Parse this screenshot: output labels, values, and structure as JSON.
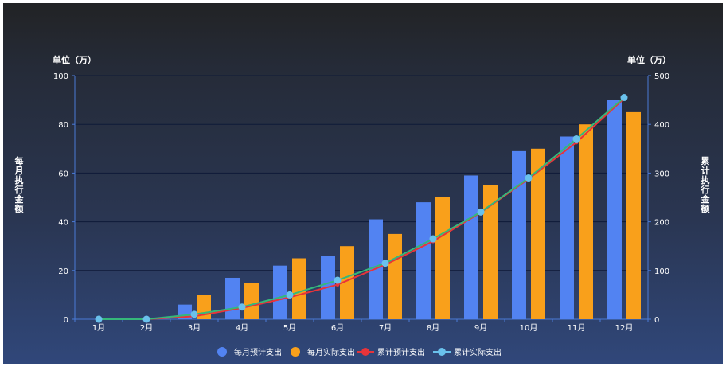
{
  "chart_data": {
    "type": "bar",
    "categories": [
      "1月",
      "2月",
      "3月",
      "4月",
      "5月",
      "6月",
      "7月",
      "8月",
      "9月",
      "10月",
      "11月",
      "12月"
    ],
    "y_left": {
      "unit_label": "单位（万）",
      "axis_name": "每月执行金额",
      "ylim": [
        0,
        100
      ],
      "ticks": [
        "0",
        "20",
        "40",
        "60",
        "80",
        "100"
      ]
    },
    "y_right": {
      "unit_label": "单位（万）",
      "axis_name": "累计执行金额",
      "ylim": [
        0,
        500
      ],
      "ticks": [
        "0",
        "100",
        "200",
        "300",
        "400",
        "500"
      ]
    },
    "series": [
      {
        "name": "每月预计支出",
        "type": "bar",
        "axis": "left",
        "color": "#5283f2",
        "values": [
          0,
          0,
          6,
          17,
          22,
          26,
          41,
          48,
          59,
          69,
          75,
          90
        ]
      },
      {
        "name": "每月实际支出",
        "type": "bar",
        "axis": "left",
        "color": "#f9a01b",
        "values": [
          0,
          0,
          10,
          15,
          25,
          30,
          35,
          50,
          55,
          70,
          80,
          85
        ]
      },
      {
        "name": "累计预计支出",
        "type": "line",
        "axis": "right",
        "color": "#e8343a",
        "values": [
          0,
          0,
          6,
          23,
          45,
          71,
          112,
          160,
          219,
          288,
          363,
          453
        ]
      },
      {
        "name": "累计实际支出",
        "type": "line",
        "axis": "right",
        "color": "#6ac1ec",
        "values": [
          0,
          0,
          10,
          25,
          50,
          80,
          115,
          165,
          220,
          290,
          370,
          455
        ]
      }
    ],
    "legend_position": "bottom-center",
    "grid": true
  }
}
